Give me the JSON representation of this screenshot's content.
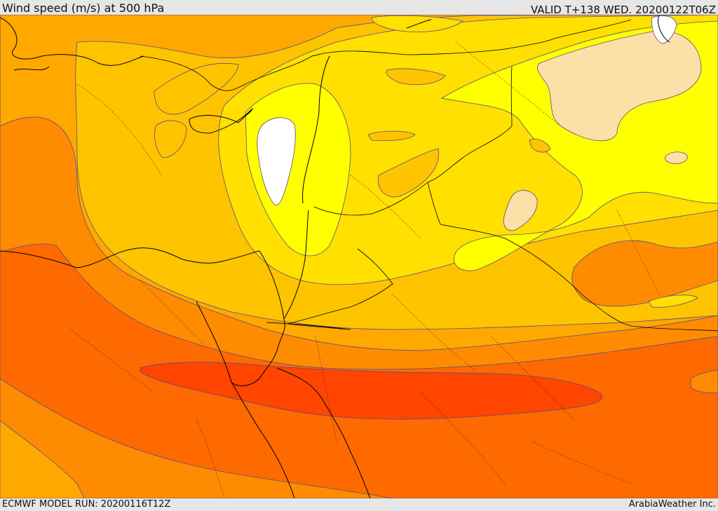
{
  "header": {
    "title": "Wind speed (m/s) at 500 hPa",
    "valid": "VALID T+138 WED. 20200122T06Z"
  },
  "footer": {
    "model_run": "ECMWF MODEL RUN: 20200116T12Z",
    "credit": "ArabiaWeather Inc."
  },
  "colors": {
    "lightest": "#ffffff",
    "peach": "#fde0a8",
    "yellow": "#ffff00",
    "gold": "#ffe000",
    "amber": "#ffc400",
    "orange_light": "#ffa900",
    "orange": "#ff8c00",
    "orange_dark": "#ff6a00",
    "red_orange": "#ff4500",
    "contour": "#5a4a8a",
    "coast": "#000000"
  }
}
